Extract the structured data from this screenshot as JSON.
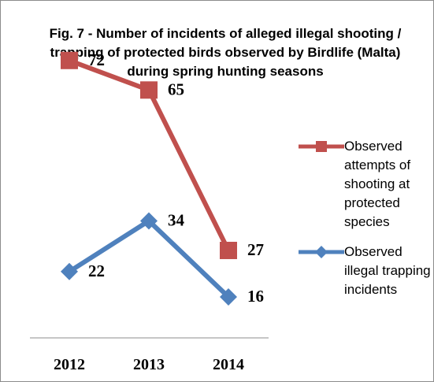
{
  "chart_data": {
    "type": "line",
    "title": "Fig. 7 - Number of incidents of alleged illegal shooting / trapping of protected birds observed by Birdlife (Malta) during spring hunting seasons",
    "categories": [
      "2012",
      "2013",
      "2014"
    ],
    "series": [
      {
        "name": "Observed attempts of shooting at protected species",
        "values": [
          72,
          65,
          27
        ],
        "color": "#c0504d",
        "marker": "square"
      },
      {
        "name": "Observed illegal trapping incidents",
        "values": [
          22,
          34,
          16
        ],
        "color": "#4f81bd",
        "marker": "diamond"
      }
    ],
    "xlabel": "",
    "ylabel": "",
    "ylim": [
      0,
      85
    ],
    "grid": false,
    "legend_position": "right"
  }
}
